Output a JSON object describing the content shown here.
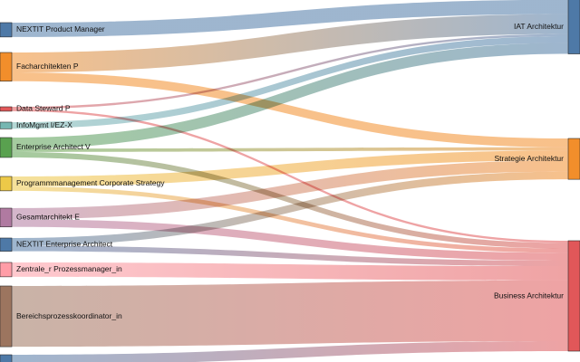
{
  "chart_data": {
    "type": "sankey",
    "title": "",
    "sources": [
      {
        "id": "s0",
        "label": "",
        "color": "#4e79a7"
      },
      {
        "id": "s1",
        "label": "NEXTIT Product Manager",
        "color": "#4e79a7"
      },
      {
        "id": "s2",
        "label": "Facharchitekten P",
        "color": "#f28e2b"
      },
      {
        "id": "s3",
        "label": "Data Steward P",
        "color": "#e15759"
      },
      {
        "id": "s4",
        "label": "InfoMgmt I/EZ-X",
        "color": "#76b7b2"
      },
      {
        "id": "s5",
        "label": "Enterprise Architect V",
        "color": "#59a14f"
      },
      {
        "id": "s6",
        "label": "Programmmanagement Corporate Strategy",
        "color": "#edc948"
      },
      {
        "id": "s7",
        "label": "Gesamtarchitekt E",
        "color": "#b07aa1"
      },
      {
        "id": "s8",
        "label": "NEXTIT Enterprise Architect",
        "color": "#4e79a7"
      },
      {
        "id": "s9",
        "label": "Zentrale_r Prozessmanager_in",
        "color": "#ff9da7"
      },
      {
        "id": "s10",
        "label": "Bereichsprozesskoordinator_in",
        "color": "#9c755f"
      },
      {
        "id": "s11",
        "label": "",
        "color": "#4e79a7"
      }
    ],
    "targets": [
      {
        "id": "t0",
        "label": "IAT Architektur",
        "color": "#4e79a7"
      },
      {
        "id": "t1",
        "label": "Strategie Architektur",
        "color": "#f28e2b"
      },
      {
        "id": "t2",
        "label": "Business Architektur",
        "color": "#e15759"
      }
    ],
    "flows": [
      {
        "source": "s0",
        "target": "t0",
        "value": 16
      },
      {
        "source": "s1",
        "target": "t0",
        "value": 26
      },
      {
        "source": "s2",
        "target": "t0",
        "value": 36
      },
      {
        "source": "s2",
        "target": "t1",
        "value": 16
      },
      {
        "source": "s3",
        "target": "t0",
        "value": 4
      },
      {
        "source": "s3",
        "target": "t2",
        "value": 4
      },
      {
        "source": "s4",
        "target": "t0",
        "value": 12
      },
      {
        "source": "s5",
        "target": "t0",
        "value": 20
      },
      {
        "source": "s5",
        "target": "t1",
        "value": 6
      },
      {
        "source": "s5",
        "target": "t2",
        "value": 10
      },
      {
        "source": "s6",
        "target": "t1",
        "value": 18
      },
      {
        "source": "s6",
        "target": "t2",
        "value": 8
      },
      {
        "source": "s7",
        "target": "t1",
        "value": 20
      },
      {
        "source": "s7",
        "target": "t2",
        "value": 14
      },
      {
        "source": "s8",
        "target": "t1",
        "value": 14
      },
      {
        "source": "s8",
        "target": "t2",
        "value": 10
      },
      {
        "source": "s9",
        "target": "t2",
        "value": 26
      },
      {
        "source": "s10",
        "target": "t2",
        "value": 110
      },
      {
        "source": "s11",
        "target": "t2",
        "value": 18
      }
    ],
    "xlabel": "",
    "ylabel": ""
  }
}
